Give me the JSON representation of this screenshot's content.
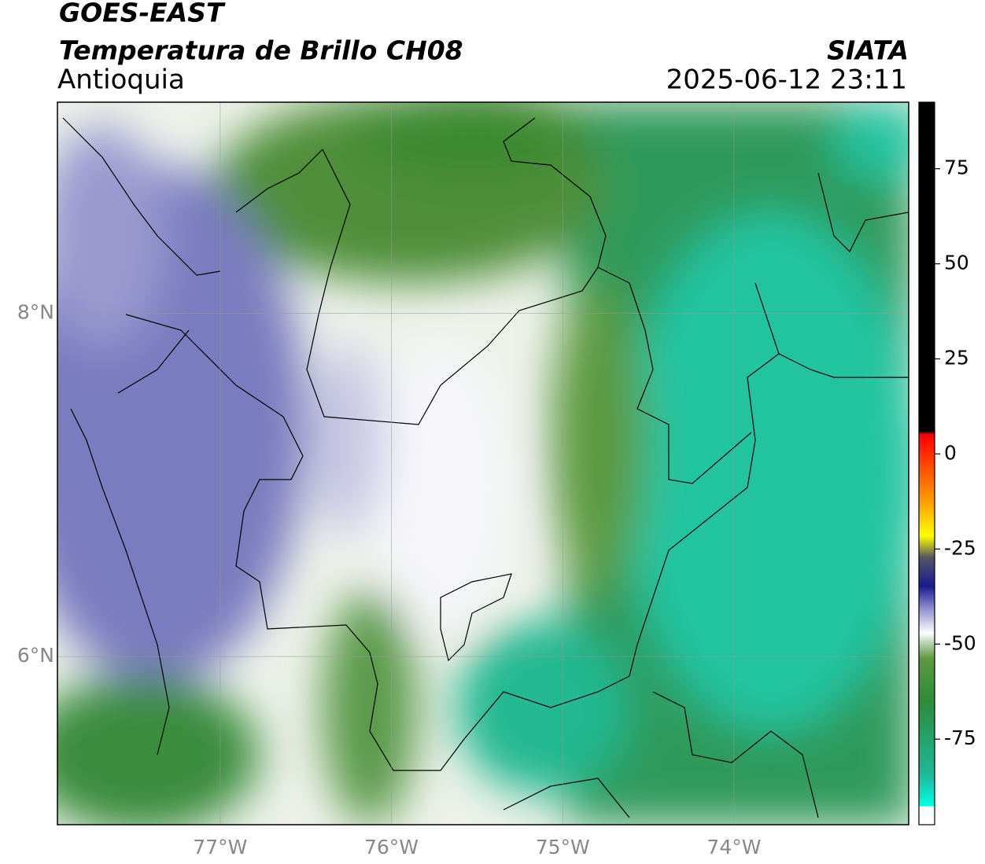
{
  "header": {
    "title": "GOES-EAST",
    "subtitle": "Temperatura de Brillo CH08",
    "region": "Antioquia",
    "source": "SIATA",
    "timestamp": "2025-06-12 23:11"
  },
  "map": {
    "xlim": [
      -77.95,
      -72.98
    ],
    "ylim": [
      5.02,
      9.23
    ],
    "xticks": [
      {
        "value": -77,
        "label": "77°W"
      },
      {
        "value": -76,
        "label": "76°W"
      },
      {
        "value": -75,
        "label": "75°W"
      },
      {
        "value": -74,
        "label": "74°W"
      }
    ],
    "yticks": [
      {
        "value": 8,
        "label": "8°N"
      },
      {
        "value": 6,
        "label": "6°N"
      }
    ],
    "grid": true
  },
  "colorbar": {
    "lim": [
      -97.5,
      92.5
    ],
    "ticks": [
      -75,
      -50,
      -25,
      0,
      25,
      50,
      75
    ]
  }
}
